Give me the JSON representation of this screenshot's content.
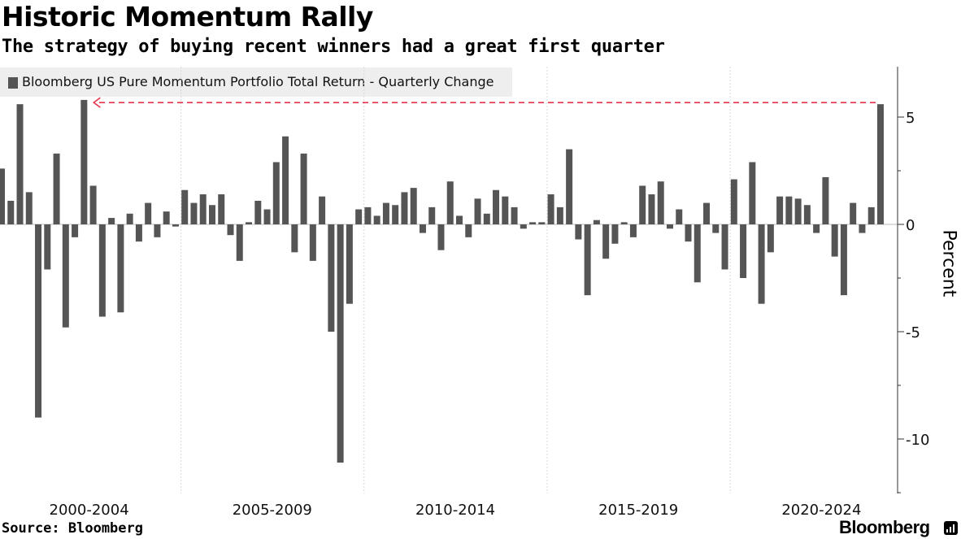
{
  "header": {
    "title": "Historic Momentum Rally",
    "subtitle": "The strategy of buying recent winners had a great first quarter"
  },
  "footer": {
    "source": "Source: Bloomberg",
    "brand": "Bloomberg"
  },
  "colors": {
    "bar": "#555555",
    "annotation": "#e8334b",
    "grid": "#d8d8d8",
    "legend_bg": "#eeeeee"
  },
  "chart_data": {
    "type": "bar",
    "title": "Historic Momentum Rally",
    "subtitle": "The strategy of buying recent winners had a great first quarter",
    "xlabel": "",
    "ylabel": "Percent",
    "ylim": [
      -12.5,
      7.5
    ],
    "yticks": [
      5,
      0,
      -5,
      -10
    ],
    "ytick_labels": [
      "5",
      "0",
      "-5",
      "-10"
    ],
    "grid": "vertical",
    "legend_position": "top-left",
    "period_labels": [
      "2000-2004",
      "2005-2009",
      "2010-2014",
      "2015-2019",
      "2020-2024"
    ],
    "series": [
      {
        "name": "Bloomberg US Pure Momentum Portfolio Total Return - Quarterly Change",
        "categories": [
          "2000 Q1",
          "2000 Q2",
          "2000 Q3",
          "2000 Q4",
          "2001 Q1",
          "2001 Q2",
          "2001 Q3",
          "2001 Q4",
          "2002 Q1",
          "2002 Q2",
          "2002 Q3",
          "2002 Q4",
          "2003 Q1",
          "2003 Q2",
          "2003 Q3",
          "2003 Q4",
          "2004 Q1",
          "2004 Q2",
          "2004 Q3",
          "2004 Q4",
          "2005 Q1",
          "2005 Q2",
          "2005 Q3",
          "2005 Q4",
          "2006 Q1",
          "2006 Q2",
          "2006 Q3",
          "2006 Q4",
          "2007 Q1",
          "2007 Q2",
          "2007 Q3",
          "2007 Q4",
          "2008 Q1",
          "2008 Q2",
          "2008 Q3",
          "2008 Q4",
          "2009 Q1",
          "2009 Q2",
          "2009 Q3",
          "2009 Q4",
          "2010 Q1",
          "2010 Q2",
          "2010 Q3",
          "2010 Q4",
          "2011 Q1",
          "2011 Q2",
          "2011 Q3",
          "2011 Q4",
          "2012 Q1",
          "2012 Q2",
          "2012 Q3",
          "2012 Q4",
          "2013 Q1",
          "2013 Q2",
          "2013 Q3",
          "2013 Q4",
          "2014 Q1",
          "2014 Q2",
          "2014 Q3",
          "2014 Q4",
          "2015 Q1",
          "2015 Q2",
          "2015 Q3",
          "2015 Q4",
          "2016 Q1",
          "2016 Q2",
          "2016 Q3",
          "2016 Q4",
          "2017 Q1",
          "2017 Q2",
          "2017 Q3",
          "2017 Q4",
          "2018 Q1",
          "2018 Q2",
          "2018 Q3",
          "2018 Q4",
          "2019 Q1",
          "2019 Q2",
          "2019 Q3",
          "2019 Q4",
          "2020 Q1",
          "2020 Q2",
          "2020 Q3",
          "2020 Q4",
          "2021 Q1",
          "2021 Q2",
          "2021 Q3",
          "2021 Q4",
          "2022 Q1",
          "2022 Q2",
          "2022 Q3",
          "2022 Q4",
          "2023 Q1",
          "2023 Q2",
          "2023 Q3",
          "2023 Q4",
          "2024 Q1"
        ],
        "values": [
          2.6,
          1.1,
          5.6,
          1.5,
          -9.0,
          -2.1,
          3.3,
          -4.8,
          -0.6,
          5.8,
          1.8,
          -4.3,
          0.3,
          -4.1,
          0.5,
          -0.8,
          1.0,
          -0.6,
          0.6,
          -0.1,
          1.6,
          1.0,
          1.4,
          0.9,
          1.4,
          -0.5,
          -1.7,
          0.1,
          1.1,
          0.7,
          2.9,
          4.1,
          -1.3,
          3.3,
          -1.7,
          1.3,
          -5.0,
          -11.1,
          -3.7,
          0.7,
          0.8,
          0.4,
          1.0,
          0.9,
          1.5,
          1.7,
          -0.4,
          0.8,
          -1.2,
          2.0,
          0.4,
          -0.6,
          1.2,
          0.5,
          1.6,
          1.3,
          0.8,
          -0.2,
          0.1,
          0.1,
          1.4,
          0.8,
          3.5,
          -0.7,
          -3.3,
          0.2,
          -1.6,
          -0.9,
          0.1,
          -0.6,
          1.8,
          1.4,
          2.0,
          -0.2,
          0.7,
          -0.8,
          -2.7,
          1.0,
          -0.4,
          -2.1,
          2.1,
          -2.5,
          2.9,
          -3.7,
          -1.3,
          1.3,
          1.3,
          1.2,
          0.9,
          -0.4,
          2.2,
          -1.5,
          -3.3,
          1.0,
          -0.4,
          0.8,
          5.6
        ]
      }
    ],
    "annotation": {
      "type": "dashed-arrow",
      "from": "2024 Q1",
      "to": "2002 Q2",
      "value": 5.6
    }
  }
}
